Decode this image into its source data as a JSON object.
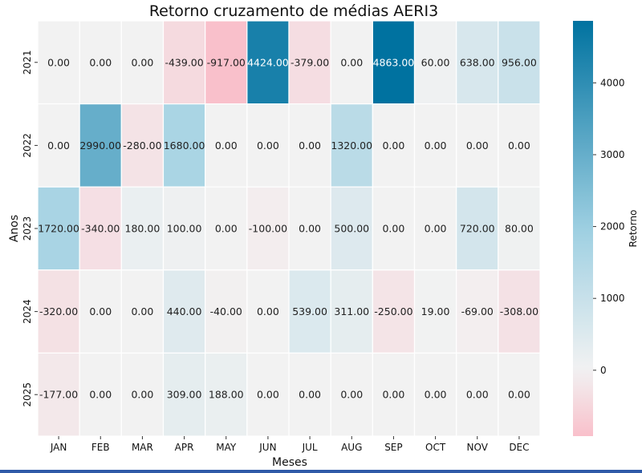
{
  "chart_data": {
    "type": "heatmap",
    "title": "Retorno cruzamento de médias AERI3",
    "xlabel": "Meses",
    "ylabel": "Anos",
    "x_categories": [
      "JAN",
      "FEB",
      "MAR",
      "APR",
      "MAY",
      "JUN",
      "JUL",
      "AUG",
      "SEP",
      "OCT",
      "NOV",
      "DEC"
    ],
    "y_categories": [
      "2021",
      "2022",
      "2023",
      "2024",
      "2025"
    ],
    "values": [
      [
        0,
        0,
        0,
        -439,
        -917,
        4424,
        -379,
        0,
        4863,
        60,
        638,
        956
      ],
      [
        0,
        2990,
        -280,
        1680,
        0,
        0,
        0,
        1320,
        0,
        0,
        0,
        0
      ],
      [
        1720,
        -340,
        180,
        100,
        0,
        -100,
        0,
        500,
        0,
        0,
        720,
        80
      ],
      [
        -320,
        0,
        0,
        440,
        -40,
        0,
        539,
        311,
        -250,
        19,
        -69,
        -308
      ],
      [
        -177,
        0,
        0,
        309,
        188,
        0,
        0,
        0,
        0,
        0,
        0,
        0
      ]
    ],
    "value_labels": [
      [
        "0.00",
        "0.00",
        "0.00",
        "-439.00",
        "-917.00",
        "4424.00",
        "-379.00",
        "0.00",
        "4863.00",
        "60.00",
        "638.00",
        "956.00"
      ],
      [
        "0.00",
        "2990.00",
        "-280.00",
        "1680.00",
        "0.00",
        "0.00",
        "0.00",
        "1320.00",
        "0.00",
        "0.00",
        "0.00",
        "0.00"
      ],
      [
        "1720.00",
        "-340.00",
        "180.00",
        "100.00",
        "0.00",
        "-100.00",
        "0.00",
        "500.00",
        "0.00",
        "0.00",
        "720.00",
        "80.00"
      ],
      [
        "-320.00",
        "0.00",
        "0.00",
        "440.00",
        "-40.00",
        "0.00",
        "539.00",
        "311.00",
        "-250.00",
        "19.00",
        "-69.00",
        "-308.00"
      ],
      [
        "-177.00",
        "0.00",
        "0.00",
        "309.00",
        "188.00",
        "0.00",
        "0.00",
        "0.00",
        "0.00",
        "0.00",
        "0.00",
        "0.00"
      ]
    ],
    "colorbar": {
      "label": "Retorno",
      "ticks": [
        0,
        1000,
        2000,
        3000,
        4000
      ],
      "tick_labels": [
        "0",
        "1000",
        "2000",
        "3000",
        "4000"
      ],
      "range": [
        -917,
        4863
      ]
    },
    "colors": {
      "negative": "#f9c0cb",
      "neutral": "#f2f2f2",
      "mid": "#9fd0e2",
      "positive": "#0072a0"
    },
    "grid": false
  }
}
